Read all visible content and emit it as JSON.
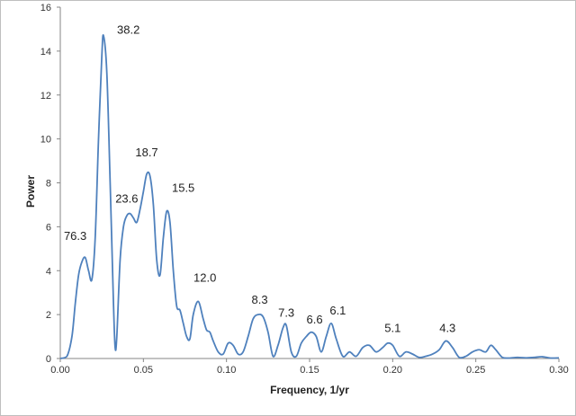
{
  "chart_data": {
    "type": "line",
    "title": "",
    "xlabel": "Frequency, 1/yr",
    "ylabel": "Power",
    "xlim": [
      0,
      0.3
    ],
    "ylim": [
      0,
      16
    ],
    "x_ticks": [
      "0.00",
      "0.05",
      "0.10",
      "0.15",
      "0.20",
      "0.25",
      "0.30"
    ],
    "y_ticks": [
      "0",
      "2",
      "4",
      "6",
      "8",
      "10",
      "12",
      "14",
      "16"
    ],
    "grid": false,
    "legend": "none",
    "line_color": "#4f81bd",
    "series": [
      {
        "x": [
          0.0,
          0.004,
          0.007,
          0.009,
          0.011,
          0.013,
          0.015,
          0.017,
          0.019,
          0.021,
          0.023,
          0.025,
          0.026,
          0.028,
          0.03,
          0.032,
          0.033,
          0.034,
          0.036,
          0.038,
          0.04,
          0.042,
          0.044,
          0.046,
          0.048,
          0.05,
          0.052,
          0.054,
          0.056,
          0.058,
          0.06,
          0.062,
          0.064,
          0.066,
          0.068,
          0.07,
          0.072,
          0.074,
          0.076,
          0.078,
          0.08,
          0.083,
          0.086,
          0.088,
          0.09,
          0.092,
          0.095,
          0.098,
          0.101,
          0.104,
          0.107,
          0.11,
          0.113,
          0.116,
          0.119,
          0.122,
          0.125,
          0.128,
          0.131,
          0.134,
          0.136,
          0.139,
          0.142,
          0.145,
          0.148,
          0.151,
          0.154,
          0.157,
          0.16,
          0.163,
          0.166,
          0.17,
          0.174,
          0.178,
          0.182,
          0.186,
          0.19,
          0.194,
          0.197,
          0.2,
          0.204,
          0.208,
          0.212,
          0.216,
          0.22,
          0.224,
          0.228,
          0.232,
          0.236,
          0.24,
          0.244,
          0.248,
          0.252,
          0.256,
          0.259,
          0.262,
          0.266,
          0.27,
          0.275,
          0.28,
          0.285,
          0.29,
          0.295,
          0.3
        ],
        "y": [
          0,
          0.1,
          1.0,
          2.5,
          3.8,
          4.4,
          4.6,
          4.0,
          3.6,
          5.5,
          10.0,
          13.8,
          14.7,
          13.0,
          8.0,
          2.5,
          0.5,
          1.0,
          4.5,
          6.0,
          6.5,
          6.6,
          6.4,
          6.2,
          6.8,
          7.6,
          8.4,
          8.3,
          7.0,
          4.5,
          3.8,
          5.5,
          6.7,
          6.2,
          4.0,
          2.4,
          2.2,
          1.6,
          1.0,
          0.9,
          2.0,
          2.6,
          1.8,
          1.3,
          1.2,
          0.8,
          0.3,
          0.2,
          0.7,
          0.6,
          0.2,
          0.3,
          1.0,
          1.8,
          2.0,
          1.9,
          1.2,
          0.1,
          0.6,
          1.4,
          1.5,
          0.3,
          0.1,
          0.7,
          1.0,
          1.2,
          1.0,
          0.3,
          1.0,
          1.6,
          0.9,
          0.1,
          0.3,
          0.1,
          0.5,
          0.6,
          0.3,
          0.5,
          0.7,
          0.6,
          0.1,
          0.3,
          0.2,
          0.05,
          0.1,
          0.2,
          0.4,
          0.8,
          0.5,
          0.05,
          0.1,
          0.3,
          0.4,
          0.3,
          0.6,
          0.4,
          0.05,
          0.02,
          0.05,
          0.03,
          0.05,
          0.08,
          0.02,
          0.03
        ]
      }
    ],
    "annotations": [
      {
        "text": "76.3",
        "x": 0.009,
        "y": 5.4
      },
      {
        "text": "38.2",
        "x": 0.041,
        "y": 14.8
      },
      {
        "text": "23.6",
        "x": 0.04,
        "y": 7.1
      },
      {
        "text": "18.7",
        "x": 0.052,
        "y": 9.2
      },
      {
        "text": "15.5",
        "x": 0.074,
        "y": 7.6
      },
      {
        "text": "12.0",
        "x": 0.087,
        "y": 3.5
      },
      {
        "text": "8.3",
        "x": 0.12,
        "y": 2.5
      },
      {
        "text": "7.3",
        "x": 0.136,
        "y": 1.9
      },
      {
        "text": "6.6",
        "x": 0.153,
        "y": 1.6
      },
      {
        "text": "6.1",
        "x": 0.167,
        "y": 2.0
      },
      {
        "text": "5.1",
        "x": 0.2,
        "y": 1.2
      },
      {
        "text": "4.3",
        "x": 0.233,
        "y": 1.2
      }
    ]
  }
}
